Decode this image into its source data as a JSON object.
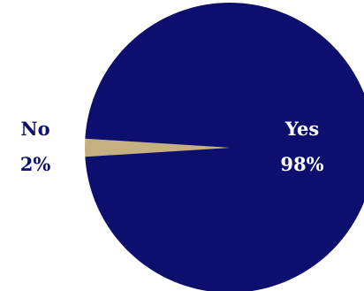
{
  "chart_data": {
    "type": "pie",
    "title": "",
    "slices": [
      {
        "label": "Yes",
        "value": 98,
        "value_label": "98%",
        "color": "#0c0f6e",
        "label_color": "#ffffff"
      },
      {
        "label": "No",
        "value": 2,
        "value_label": "2%",
        "color": "#c7b07f",
        "label_color": "#0c0f6e"
      }
    ],
    "legend": "none",
    "background": "#ffffff"
  }
}
